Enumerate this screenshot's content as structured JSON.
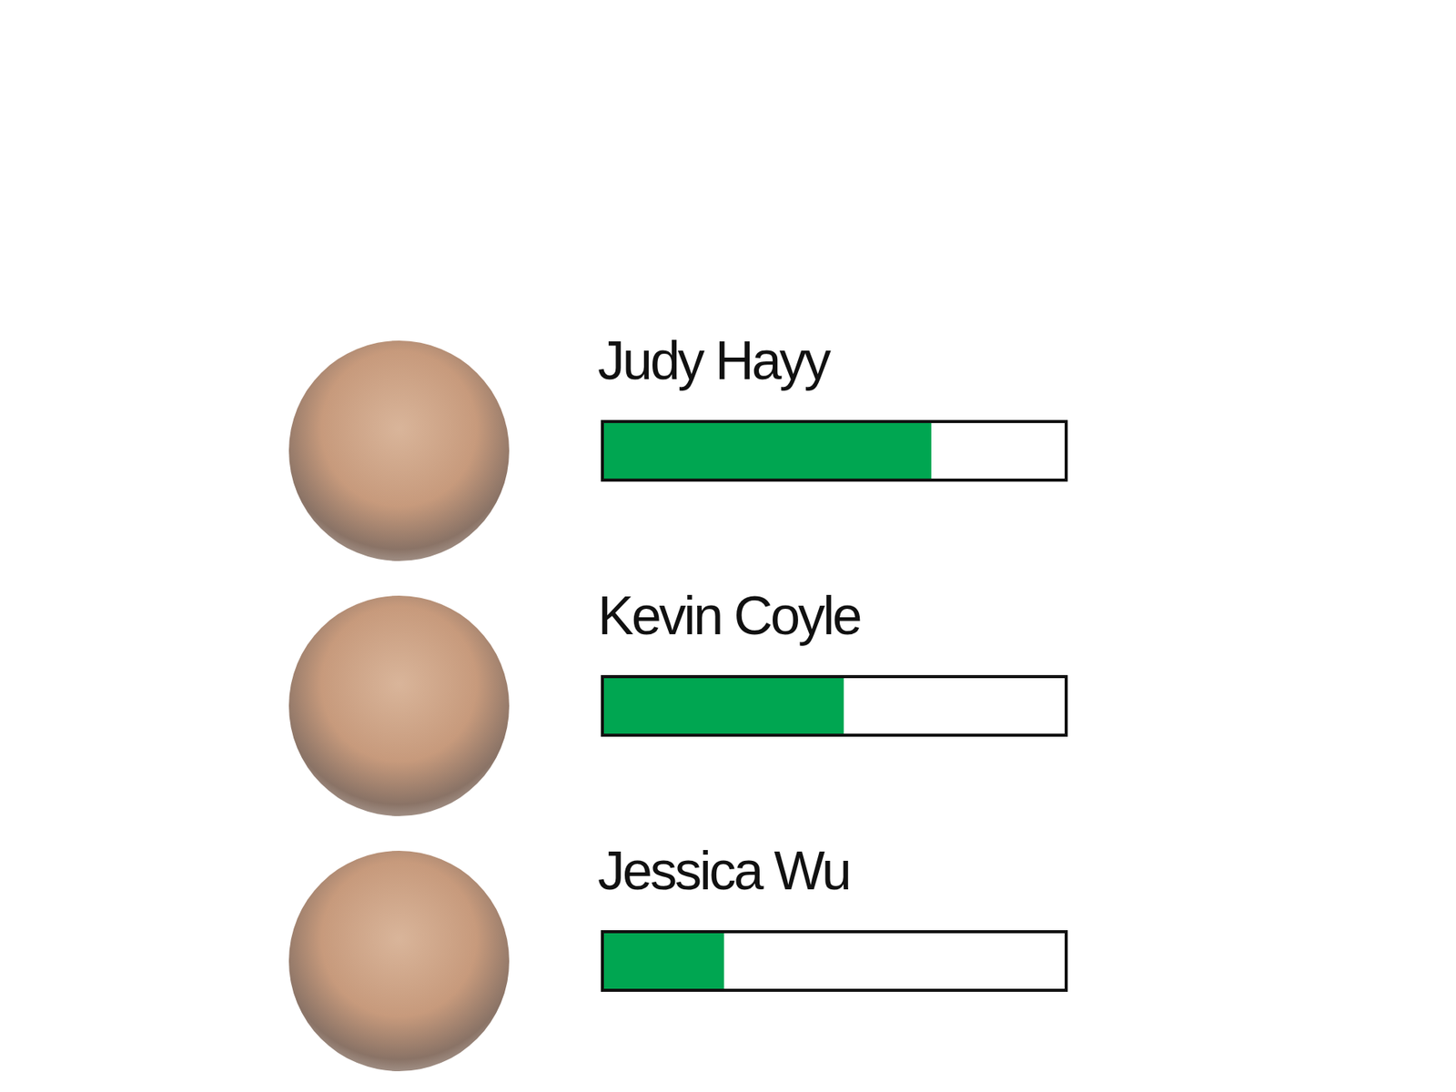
{
  "chart_data": {
    "type": "bar",
    "orientation": "horizontal",
    "categories": [
      "Judy Hayy",
      "Kevin Coyle",
      "Jessica Wu"
    ],
    "values": [
      71,
      52,
      26
    ],
    "color": "#00a651",
    "xlim": [
      0,
      100
    ],
    "grid": false,
    "tick_labels": false
  }
}
